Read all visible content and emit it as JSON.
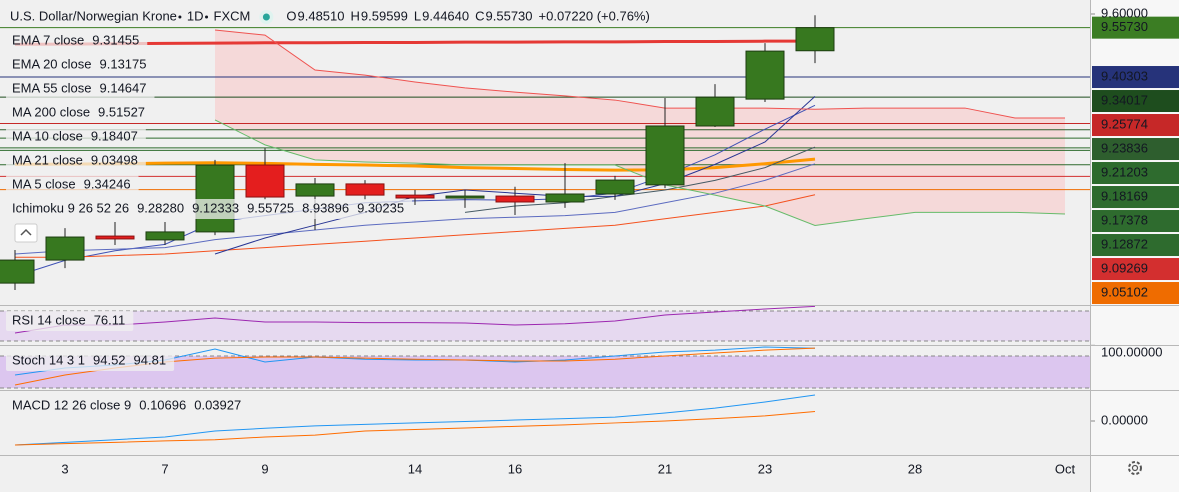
{
  "header": {
    "symbol": "U.S. Dollar/Norwegian Krone",
    "interval": "1D",
    "source": "FXCM",
    "ohlc": [
      {
        "letter": "O",
        "value": "9.48510"
      },
      {
        "letter": "H",
        "value": "9.59599"
      },
      {
        "letter": "L",
        "value": "9.44640"
      },
      {
        "letter": "C",
        "value": "9.55730"
      }
    ],
    "change": "+0.07220 (+0.76%)"
  },
  "chart_data": [
    {
      "type": "candlestick",
      "categories": [
        null,
        "3",
        null,
        "7",
        null,
        "9",
        null,
        null,
        "14",
        null,
        "16",
        null,
        null,
        "21",
        null,
        "23",
        null,
        null,
        "28",
        null,
        null,
        "Oct"
      ],
      "open": [
        8.759,
        8.831,
        8.906,
        8.894,
        8.919,
        9.128,
        9.031,
        9.069,
        9.034,
        9.03,
        9.031,
        9.0125,
        9.0375,
        9.066,
        9.25,
        9.334,
        9.4851,
        null,
        null,
        null,
        null,
        null
      ],
      "high": [
        8.8625,
        8.931,
        8.95,
        8.95,
        9.144,
        9.181,
        9.0875,
        9.081,
        9.05,
        9.05,
        9.06,
        9.134,
        9.094,
        9.3375,
        9.381,
        9.509,
        9.59599,
        null,
        null,
        null,
        null,
        null
      ],
      "low": [
        8.7375,
        8.806,
        8.878,
        8.878,
        8.909,
        9.019,
        8.925,
        9.019,
        9.003,
        8.994,
        8.972,
        8.994,
        9.019,
        9.056,
        9.247,
        9.325,
        9.4464,
        null,
        null,
        null,
        null,
        null
      ],
      "close": [
        8.831,
        8.903,
        8.897,
        8.919,
        9.128,
        9.028,
        9.069,
        9.034,
        9.025,
        9.031,
        9.0125,
        9.0375,
        9.081,
        9.25,
        9.34,
        9.484,
        9.5573,
        null,
        null,
        null,
        null,
        null
      ],
      "up_color": "#37781f",
      "down_color": "#e41e1e",
      "ylim": [
        8.6906,
        9.6437
      ],
      "yticks": [
        {
          "value": 9.6,
          "label": "9.60000"
        }
      ],
      "price_labels": [
        {
          "value": 9.5573,
          "label": "9.55730",
          "color": "#3b7d23"
        },
        {
          "value": 9.40303,
          "label": "9.40303",
          "color": "#26337a"
        },
        {
          "value": 9.34017,
          "label": "9.34017",
          "color": "#1e4d1e"
        },
        {
          "value": 9.25774,
          "label": "9.25774",
          "color": "#c62828"
        },
        {
          "value": 9.23836,
          "label": "9.23836",
          "color": "#2e5e2e"
        },
        {
          "value": 9.21203,
          "label": "9.21203",
          "color": "#2e6b2e"
        },
        {
          "value": 9.18169,
          "label": "9.18169",
          "color": "#2e6b2e"
        },
        {
          "value": 9.17378,
          "label": "9.17378",
          "color": "#2e6b2e"
        },
        {
          "value": 9.12872,
          "label": "9.12872",
          "color": "#2e6b2e"
        },
        {
          "value": 9.09269,
          "label": "9.09269",
          "color": "#d32f2f"
        },
        {
          "value": 9.05102,
          "label": "9.05102",
          "color": "#ef6c00"
        }
      ],
      "legend": [
        {
          "name": "EMA 7 close",
          "series": [
            {
              "color": "#3f51b5",
              "legend_value": "9.31455",
              "values": [
                8.78,
                8.83,
                8.86,
                8.88,
                8.95,
                8.97,
                8.99,
                9.01,
                9.016,
                9.02,
                9.018,
                9.023,
                9.04,
                9.095,
                9.16,
                9.24,
                9.31455,
                null,
                null,
                null,
                null,
                null
              ]
            }
          ]
        },
        {
          "name": "EMA 20 close",
          "series": [
            {
              "color": "#5c6bc0",
              "legend_value": "9.13175",
              "values": [
                8.85,
                8.86,
                8.865,
                8.87,
                8.895,
                8.91,
                8.925,
                8.94,
                8.95,
                8.96,
                8.965,
                8.97,
                8.98,
                9.01,
                9.04,
                9.08,
                9.13175,
                null,
                null,
                null,
                null,
                null
              ]
            }
          ]
        },
        {
          "name": "EMA 55 close",
          "series": [
            {
              "color": "#ff9800",
              "width": 3,
              "legend_value": "9.14647",
              "values": [
                9.13,
                9.131,
                9.132,
                9.134,
                9.135,
                9.133,
                9.13,
                9.128,
                9.125,
                9.12,
                9.117,
                9.114,
                9.112,
                9.113,
                9.12,
                9.132,
                9.14647,
                null,
                null,
                null,
                null,
                null
              ]
            }
          ]
        },
        {
          "name": "MA 200 close",
          "series": [
            {
              "color": "#e53935",
              "width": 3,
              "legend_value": "9.51527",
              "values": [
                9.505,
                9.506,
                9.507,
                9.508,
                9.509,
                9.51,
                9.51,
                9.511,
                9.511,
                9.512,
                9.512,
                9.513,
                9.513,
                9.514,
                9.514,
                9.515,
                9.51527,
                null,
                null,
                null,
                null,
                null
              ]
            }
          ]
        },
        {
          "name": "MA 10 close",
          "series": [
            {
              "color": "#455a64",
              "legend_value": "9.18407",
              "values": [
                null,
                null,
                null,
                null,
                null,
                null,
                null,
                null,
                null,
                8.98,
                9.0,
                9.01,
                9.03,
                9.05,
                9.08,
                9.12,
                9.18407,
                null,
                null,
                null,
                null,
                null
              ]
            }
          ]
        },
        {
          "name": "MA 21 close",
          "series": [
            {
              "color": "#f4511e",
              "legend_value": "9.03498",
              "values": [
                8.84,
                8.84,
                8.845,
                8.85,
                8.86,
                8.87,
                8.88,
                8.89,
                8.9,
                8.91,
                8.92,
                8.93,
                8.94,
                8.96,
                8.98,
                9.0,
                9.03498,
                null,
                null,
                null,
                null,
                null
              ]
            }
          ]
        },
        {
          "name": "MA 5 close",
          "series": [
            {
              "color": "#283593",
              "legend_value": "9.34246",
              "values": [
                null,
                null,
                null,
                null,
                8.85,
                8.9,
                8.94,
                8.98,
                9.03,
                9.05,
                9.04,
                9.03,
                9.03,
                9.07,
                9.13,
                9.2,
                9.34246,
                null,
                null,
                null,
                null,
                null
              ]
            }
          ]
        },
        {
          "name": "Ichimoku 9 26 52 26",
          "cloud_color": "#f6d3d3",
          "series": [
            {
              "color": "#2962ff",
              "legend_value": "9.28280"
            },
            {
              "color": "#b71c1c",
              "legend_value": "9.12333"
            },
            {
              "color": "#43a047",
              "legend_value": "9.55725"
            },
            {
              "color": "#66bb6a",
              "legend_value": "8.93896",
              "values": [
                null,
                null,
                null,
                null,
                9.269,
                9.191,
                9.144,
                9.1375,
                9.134,
                9.128,
                9.128,
                9.128,
                9.128,
                9.066,
                9.034,
                9.0,
                8.93896,
                8.96,
                8.98,
                8.98,
                8.98,
                8.975
              ]
            },
            {
              "color": "#ef5350",
              "legend_value": "9.30235",
              "values": [
                null,
                null,
                null,
                null,
                9.55,
                9.534,
                9.425,
                9.409,
                9.3875,
                9.369,
                9.356,
                9.344,
                9.331,
                9.306,
                9.306,
                9.306,
                9.30235,
                9.306,
                9.306,
                9.306,
                9.275,
                9.275
              ]
            }
          ]
        }
      ]
    },
    {
      "type": "line",
      "ylim": [
        24.7,
        78
      ],
      "bands": [
        70,
        30
      ],
      "band_color": "#e6d9f0",
      "legend": [
        {
          "name": "RSI 14 close",
          "series": [
            {
              "color": "#9c27b0",
              "legend_value": "76.11",
              "values": [
                40.7,
                51.3,
                51.3,
                55.3,
                60.7,
                55.3,
                55.3,
                54.5,
                54.5,
                54,
                51.3,
                53,
                56.7,
                64.7,
                68.7,
                72.7,
                76.11
              ]
            }
          ]
        }
      ]
    },
    {
      "type": "line",
      "ylim": [
        16.25,
        100.6
      ],
      "bands": [
        80,
        20
      ],
      "band_color": "#dcc6ef",
      "yticks": [
        {
          "value": 100,
          "label": "100.00000"
        }
      ],
      "legend": [
        {
          "name": "Stoch 14 3 1",
          "series": [
            {
              "color": "#2196f3",
              "legend_value": "94.52",
              "values": [
                44.4,
                57.5,
                63,
                72.5,
                93,
                68.7,
                78,
                74,
                72.5,
                72.5,
                68.7,
                72.5,
                80,
                87.5,
                91,
                96.9,
                94.52
              ]
            },
            {
              "color": "#ff6d00",
              "legend_value": "94.81",
              "values": [
                25.6,
                44.4,
                57.5,
                68.7,
                76,
                78,
                78,
                76,
                74,
                72.5,
                70.6,
                70.6,
                74,
                80,
                85.6,
                91,
                94.81
              ]
            }
          ]
        }
      ]
    },
    {
      "type": "line",
      "ylim": [
        -0.14,
        0.1276
      ],
      "yticks": [
        {
          "value": 0,
          "label": "0.00000"
        }
      ],
      "legend": [
        {
          "name": "MACD 12 26 close 9",
          "series": [
            {
              "color": "#2196f3",
              "legend_value": "0.10696",
              "values": [
                -0.099,
                -0.088,
                -0.077,
                -0.066,
                -0.041,
                -0.03,
                -0.02,
                -0.014,
                -0.008,
                -0.002,
                0.004,
                0.01,
                0.016,
                0.033,
                0.053,
                0.078,
                0.10696
              ]
            },
            {
              "color": "#ff6d00",
              "legend_value": "0.03927",
              "values": [
                -0.099,
                -0.093,
                -0.088,
                -0.082,
                -0.077,
                -0.066,
                -0.058,
                -0.041,
                -0.035,
                -0.029,
                -0.022,
                -0.016,
                -0.008,
                0,
                0.01,
                0.021,
                0.03927
              ]
            }
          ]
        }
      ]
    }
  ]
}
